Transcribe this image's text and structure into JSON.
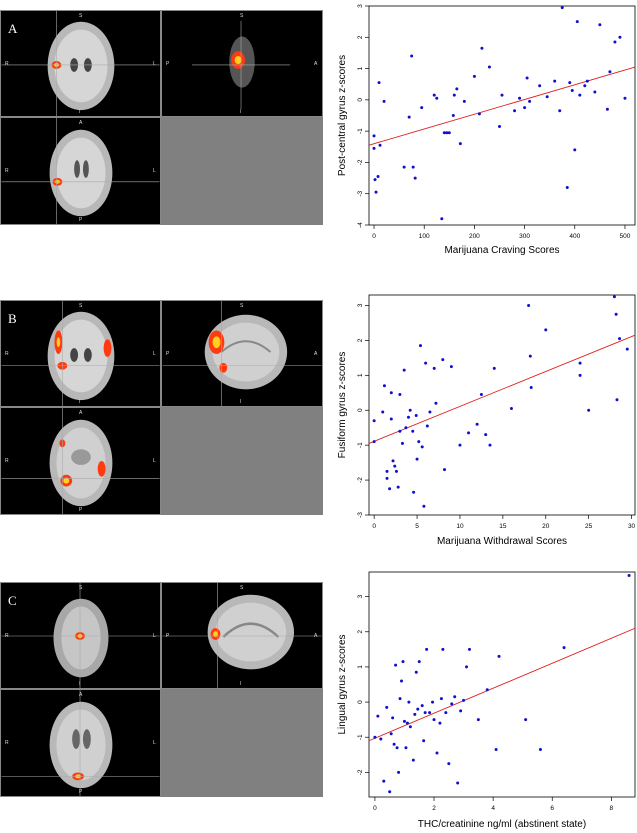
{
  "panels": [
    {
      "letter": "A",
      "orient": {
        "coronal_top": "S",
        "coronal_left": "R",
        "coronal_right": "L",
        "coronal_bottom": "I",
        "sag_top": "S",
        "sag_left": "P",
        "sag_right": "A",
        "sag_bottom": "I",
        "axial_top": "A",
        "axial_left": "R",
        "axial_right": "L",
        "axial_bottom": "P"
      },
      "chart_data": {
        "type": "scatter",
        "xlabel": "Marijuana Craving Scores",
        "ylabel": "Post-central gyrus z-scores",
        "xlim": [
          -10,
          520
        ],
        "ylim": [
          -4,
          3
        ],
        "xticks": [
          0,
          100,
          200,
          300,
          400,
          500
        ],
        "yticks": [
          -4,
          -3,
          -2,
          -1,
          0,
          1,
          2,
          3
        ],
        "point_color": "#1010cc",
        "line_color": "#e02020",
        "fit_line": [
          [
            -10,
            -1.45
          ],
          [
            520,
            1.05
          ]
        ],
        "points": [
          [
            0,
            -1.15
          ],
          [
            0,
            -1.55
          ],
          [
            2,
            -2.55
          ],
          [
            4,
            -2.95
          ],
          [
            8,
            -2.45
          ],
          [
            10,
            0.55
          ],
          [
            12,
            -1.45
          ],
          [
            20,
            -0.05
          ],
          [
            60,
            -2.15
          ],
          [
            70,
            -0.55
          ],
          [
            75,
            1.4
          ],
          [
            78,
            -2.15
          ],
          [
            82,
            -2.5
          ],
          [
            95,
            -0.25
          ],
          [
            120,
            0.15
          ],
          [
            125,
            0.05
          ],
          [
            135,
            -3.8
          ],
          [
            140,
            -1.05
          ],
          [
            145,
            -1.05
          ],
          [
            150,
            -1.05
          ],
          [
            158,
            -0.5
          ],
          [
            160,
            0.15
          ],
          [
            165,
            0.35
          ],
          [
            172,
            -1.4
          ],
          [
            180,
            -0.05
          ],
          [
            200,
            0.75
          ],
          [
            210,
            -0.45
          ],
          [
            215,
            1.65
          ],
          [
            230,
            1.05
          ],
          [
            250,
            -0.85
          ],
          [
            255,
            0.15
          ],
          [
            280,
            -0.35
          ],
          [
            290,
            0.05
          ],
          [
            300,
            -0.25
          ],
          [
            305,
            0.7
          ],
          [
            310,
            -0.05
          ],
          [
            330,
            0.45
          ],
          [
            345,
            0.1
          ],
          [
            360,
            0.6
          ],
          [
            370,
            -0.35
          ],
          [
            375,
            2.95
          ],
          [
            385,
            -2.8
          ],
          [
            390,
            0.55
          ],
          [
            395,
            0.3
          ],
          [
            400,
            -1.6
          ],
          [
            405,
            2.5
          ],
          [
            410,
            0.15
          ],
          [
            420,
            0.45
          ],
          [
            425,
            0.6
          ],
          [
            440,
            0.25
          ],
          [
            450,
            2.4
          ],
          [
            465,
            -0.3
          ],
          [
            470,
            0.9
          ],
          [
            480,
            1.85
          ],
          [
            490,
            2.0
          ],
          [
            500,
            0.05
          ]
        ]
      }
    },
    {
      "letter": "B",
      "orient": {
        "coronal_top": "S",
        "coronal_left": "R",
        "coronal_right": "L",
        "coronal_bottom": "I",
        "sag_top": "S",
        "sag_left": "P",
        "sag_right": "A",
        "sag_bottom": "I",
        "axial_top": "A",
        "axial_left": "R",
        "axial_right": "L",
        "axial_bottom": "P"
      },
      "chart_data": {
        "type": "scatter",
        "xlabel": "Marijuana Withdrawal Scores",
        "ylabel": "Fusiform gyrus z-scores",
        "xlim": [
          -0.6,
          30.4
        ],
        "ylim": [
          -3,
          3.3
        ],
        "xticks": [
          0,
          5,
          10,
          15,
          20,
          25,
          30
        ],
        "yticks": [
          -3,
          -2,
          -1,
          0,
          1,
          2,
          3
        ],
        "point_color": "#1010cc",
        "line_color": "#e02020",
        "fit_line": [
          [
            -0.6,
            -0.95
          ],
          [
            30.4,
            2.15
          ]
        ],
        "points": [
          [
            0,
            -0.3
          ],
          [
            0,
            -0.9
          ],
          [
            1,
            -0.05
          ],
          [
            1.2,
            0.7
          ],
          [
            1.5,
            -1.75
          ],
          [
            1.5,
            -1.95
          ],
          [
            1.8,
            -2.25
          ],
          [
            2,
            0.5
          ],
          [
            2,
            -0.25
          ],
          [
            2.2,
            -1.45
          ],
          [
            2.4,
            -1.6
          ],
          [
            2.6,
            -1.75
          ],
          [
            2.8,
            -2.2
          ],
          [
            3,
            0.45
          ],
          [
            3,
            -0.6
          ],
          [
            3.3,
            -0.95
          ],
          [
            3.5,
            1.15
          ],
          [
            3.7,
            -0.5
          ],
          [
            4,
            -0.2
          ],
          [
            4.2,
            0.0
          ],
          [
            4.5,
            -0.6
          ],
          [
            4.6,
            -2.35
          ],
          [
            4.9,
            -0.15
          ],
          [
            5,
            -1.4
          ],
          [
            5.2,
            -0.9
          ],
          [
            5.4,
            1.85
          ],
          [
            5.6,
            -1.05
          ],
          [
            5.8,
            -2.75
          ],
          [
            6,
            1.35
          ],
          [
            6.2,
            -0.45
          ],
          [
            6.5,
            -0.05
          ],
          [
            7,
            1.2
          ],
          [
            7.2,
            0.2
          ],
          [
            8,
            1.45
          ],
          [
            8.2,
            -1.7
          ],
          [
            9,
            1.25
          ],
          [
            10,
            -1.0
          ],
          [
            11,
            -0.65
          ],
          [
            12,
            -0.4
          ],
          [
            12.5,
            0.45
          ],
          [
            13,
            -0.7
          ],
          [
            13.5,
            -1.0
          ],
          [
            14,
            1.2
          ],
          [
            16,
            0.05
          ],
          [
            18,
            3.0
          ],
          [
            18.2,
            1.55
          ],
          [
            18.3,
            0.65
          ],
          [
            20,
            2.3
          ],
          [
            24,
            1.0
          ],
          [
            24,
            1.35
          ],
          [
            25,
            0.0
          ],
          [
            28,
            3.25
          ],
          [
            28.2,
            2.75
          ],
          [
            28.3,
            0.3
          ],
          [
            28.6,
            2.05
          ],
          [
            29.5,
            1.75
          ]
        ]
      }
    },
    {
      "letter": "C",
      "orient": {
        "coronal_top": "S",
        "coronal_left": "R",
        "coronal_right": "L",
        "coronal_bottom": "I",
        "sag_top": "S",
        "sag_left": "P",
        "sag_right": "A",
        "sag_bottom": "I",
        "axial_top": "A",
        "axial_left": "R",
        "axial_right": "L",
        "axial_bottom": "P"
      },
      "chart_data": {
        "type": "scatter",
        "xlabel": "THC/creatinine ng/ml (abstinent state)",
        "ylabel": "Lingual gyrus z-scores",
        "xlim": [
          -0.2,
          8.8
        ],
        "ylim": [
          -2.7,
          3.7
        ],
        "xticks": [
          0,
          2,
          4,
          6,
          8
        ],
        "yticks": [
          -2,
          -1,
          0,
          1,
          2,
          3
        ],
        "point_color": "#1010cc",
        "line_color": "#e02020",
        "fit_line": [
          [
            -0.2,
            -1.1
          ],
          [
            8.8,
            2.1
          ]
        ],
        "points": [
          [
            0,
            -1.0
          ],
          [
            0.1,
            -0.4
          ],
          [
            0.2,
            -1.05
          ],
          [
            0.3,
            -2.25
          ],
          [
            0.4,
            -0.15
          ],
          [
            0.5,
            -2.55
          ],
          [
            0.55,
            -0.9
          ],
          [
            0.6,
            -0.45
          ],
          [
            0.65,
            -1.2
          ],
          [
            0.7,
            1.05
          ],
          [
            0.75,
            -1.3
          ],
          [
            0.8,
            -2.0
          ],
          [
            0.85,
            0.1
          ],
          [
            0.9,
            0.6
          ],
          [
            0.95,
            1.15
          ],
          [
            1.0,
            -0.55
          ],
          [
            1.05,
            -1.3
          ],
          [
            1.1,
            -0.6
          ],
          [
            1.15,
            0.0
          ],
          [
            1.2,
            -0.7
          ],
          [
            1.3,
            -1.65
          ],
          [
            1.35,
            -0.35
          ],
          [
            1.4,
            0.85
          ],
          [
            1.45,
            -0.2
          ],
          [
            1.5,
            1.15
          ],
          [
            1.6,
            -0.1
          ],
          [
            1.65,
            -1.1
          ],
          [
            1.7,
            -0.3
          ],
          [
            1.75,
            1.5
          ],
          [
            1.85,
            -0.3
          ],
          [
            1.95,
            0.0
          ],
          [
            2.0,
            -0.5
          ],
          [
            2.1,
            -1.45
          ],
          [
            2.2,
            -0.6
          ],
          [
            2.25,
            0.1
          ],
          [
            2.3,
            1.5
          ],
          [
            2.4,
            -0.3
          ],
          [
            2.5,
            -1.75
          ],
          [
            2.6,
            -0.05
          ],
          [
            2.7,
            0.15
          ],
          [
            2.8,
            -2.3
          ],
          [
            2.9,
            -0.25
          ],
          [
            3.0,
            0.05
          ],
          [
            3.1,
            1.0
          ],
          [
            3.2,
            1.5
          ],
          [
            3.5,
            -0.5
          ],
          [
            3.8,
            0.35
          ],
          [
            4.1,
            -1.35
          ],
          [
            4.2,
            1.3
          ],
          [
            5.1,
            -0.5
          ],
          [
            5.6,
            -1.35
          ],
          [
            6.4,
            1.55
          ],
          [
            8.6,
            3.6
          ]
        ]
      }
    }
  ]
}
